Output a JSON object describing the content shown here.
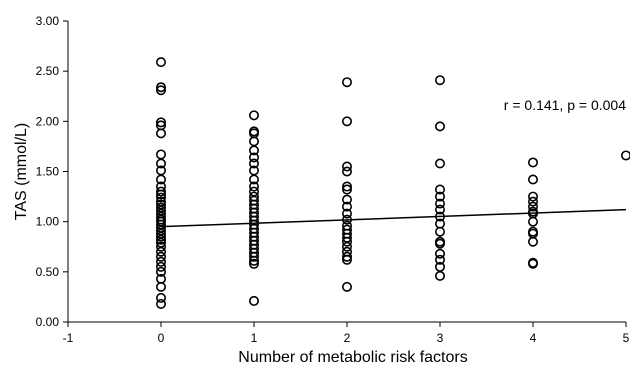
{
  "chart_data": {
    "type": "scatter",
    "title": "",
    "xlabel": "Number of metabolic risk factors",
    "ylabel": "TAS (mmol/L)",
    "xlim": [
      -1,
      5
    ],
    "ylim": [
      0,
      3
    ],
    "xticks": [
      "-1",
      "0",
      "1",
      "2",
      "3",
      "4",
      "5"
    ],
    "yticks": [
      "0.00",
      "0.50",
      "1.00",
      "1.50",
      "2.00",
      "2.50",
      "3.00"
    ],
    "annotation": "r = 0.141,  p = 0.004",
    "grid": false,
    "legend": "none",
    "series": [
      {
        "groups": [
          {
            "x": 0,
            "y": [
              2.59,
              2.34,
              2.31,
              1.99,
              1.96,
              1.88,
              1.67,
              1.58,
              1.51,
              1.42,
              1.35,
              1.3,
              1.27,
              1.24,
              1.2,
              1.17,
              1.14,
              1.11,
              1.08,
              1.05,
              1.02,
              1.0,
              0.97,
              0.94,
              0.91,
              0.88,
              0.85,
              0.82,
              0.79,
              0.75,
              0.7,
              0.65,
              0.6,
              0.55,
              0.5,
              0.43,
              0.35,
              0.24,
              0.18
            ]
          },
          {
            "x": 1,
            "y": [
              2.06,
              1.9,
              1.88,
              1.8,
              1.71,
              1.64,
              1.58,
              1.51,
              1.42,
              1.35,
              1.3,
              1.25,
              1.21,
              1.17,
              1.13,
              1.09,
              1.05,
              1.01,
              0.97,
              0.93,
              0.89,
              0.85,
              0.81,
              0.77,
              0.73,
              0.69,
              0.65,
              0.61,
              0.58,
              0.21
            ]
          },
          {
            "x": 2,
            "y": [
              2.39,
              2.0,
              1.55,
              1.5,
              1.35,
              1.32,
              1.22,
              1.15,
              1.08,
              1.02,
              0.96,
              0.92,
              0.88,
              0.84,
              0.8,
              0.75,
              0.7,
              0.65,
              0.62,
              0.35
            ]
          },
          {
            "x": 3,
            "y": [
              2.41,
              1.95,
              1.58,
              1.32,
              1.25,
              1.18,
              1.12,
              1.05,
              0.98,
              0.9,
              0.8,
              0.78,
              0.68,
              0.62,
              0.55,
              0.46
            ]
          },
          {
            "x": 4,
            "y": [
              1.59,
              1.42,
              1.25,
              1.2,
              1.15,
              1.1,
              1.08,
              1.0,
              0.9,
              0.88,
              0.8,
              0.59,
              0.58
            ]
          },
          {
            "x": 5,
            "y": [
              1.66
            ]
          }
        ]
      }
    ],
    "fit_line": {
      "x": [
        0,
        5
      ],
      "y": [
        0.95,
        1.12
      ]
    }
  }
}
